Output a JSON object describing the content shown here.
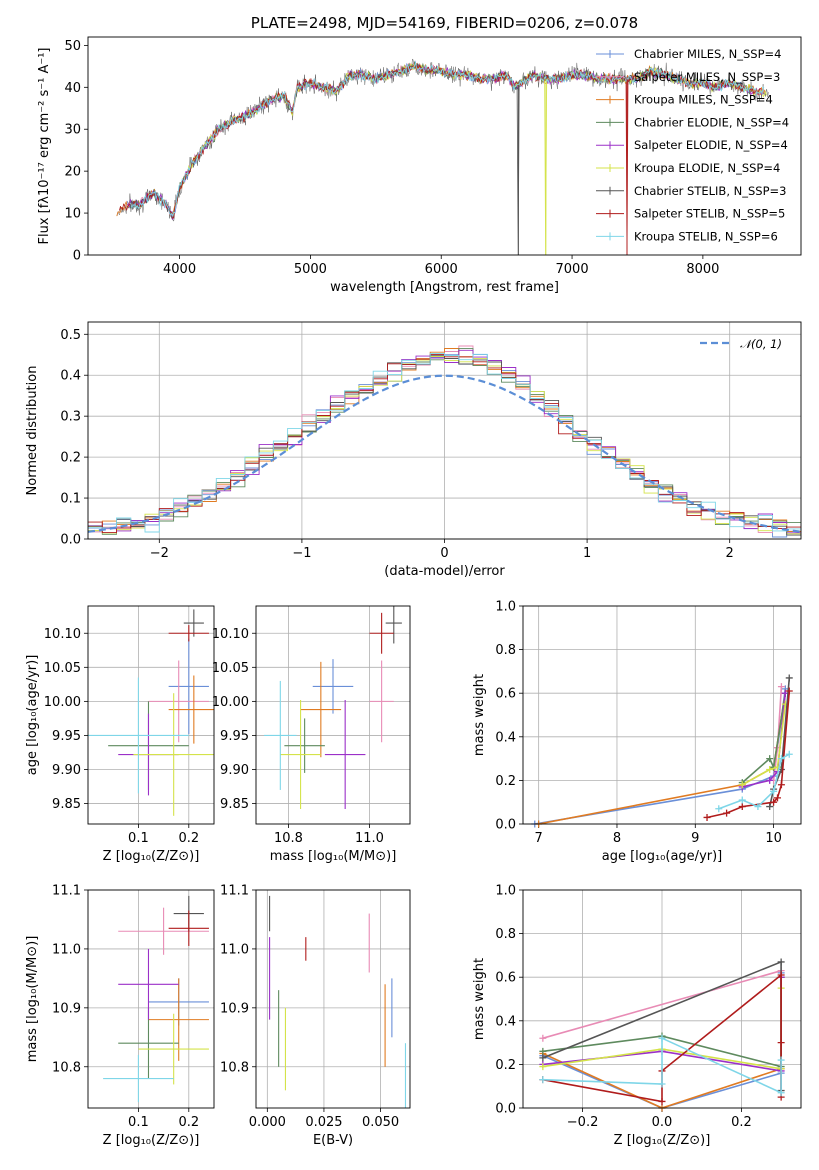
{
  "chart_data": [
    {
      "id": "spectrum",
      "type": "line",
      "title": "PLATE=2498, MJD=54169, FIBERID=0206, z=0.078",
      "xlabel": "wavelength [Angstrom, rest frame]",
      "ylabel": "Flux [fλ10⁻¹⁷ erg cm⁻² s⁻¹ A⁻¹]",
      "xlim": [
        3300,
        8750
      ],
      "ylim": [
        0,
        52
      ],
      "xticks": [
        4000,
        5000,
        6000,
        7000,
        8000
      ],
      "yticks": [
        0,
        10,
        20,
        30,
        40,
        50
      ],
      "grid": false,
      "legend_position": "top-right",
      "legend": [
        {
          "label": "Chabrier MILES, N_SSP=4",
          "color": "#6a8fd8"
        },
        {
          "label": "Salpeter MILES, N_SSP=3",
          "color": "#e88bb5"
        },
        {
          "label": "Kroupa MILES, N_SSP=4",
          "color": "#e07b22"
        },
        {
          "label": "Chabrier ELODIE, N_SSP=4",
          "color": "#5e8a5e"
        },
        {
          "label": "Salpeter ELODIE, N_SSP=4",
          "color": "#9b30c8"
        },
        {
          "label": "Kroupa ELODIE, N_SSP=4",
          "color": "#d4e34a"
        },
        {
          "label": "Chabrier STELIB, N_SSP=3",
          "color": "#555555"
        },
        {
          "label": "Salpeter STELIB, N_SSP=5",
          "color": "#b01c1c"
        },
        {
          "label": "Kroupa STELIB, N_SSP=6",
          "color": "#7fd6e8"
        }
      ],
      "spectrum_anchor_points": {
        "x": [
          3520,
          3600,
          3700,
          3800,
          3900,
          3950,
          4000,
          4100,
          4200,
          4300,
          4400,
          4500,
          4600,
          4700,
          4800,
          4860,
          4900,
          5000,
          5100,
          5200,
          5300,
          5400,
          5500,
          5600,
          5700,
          5800,
          5900,
          6000,
          6100,
          6200,
          6300,
          6400,
          6500,
          6563,
          6700,
          6800,
          6900,
          7000,
          7100,
          7200,
          7300,
          7400,
          7500,
          7600,
          7700,
          7800,
          7900,
          8000,
          8100,
          8200,
          8300,
          8400,
          8500
        ],
        "y": [
          10,
          12,
          12,
          15,
          12,
          9,
          16,
          22,
          26,
          30,
          32,
          33,
          35,
          37,
          38,
          34,
          40,
          41,
          40,
          39,
          43,
          43,
          42,
          43,
          44,
          45,
          44,
          44,
          43,
          43,
          42,
          42,
          43,
          40,
          43,
          42,
          42,
          43,
          43,
          42,
          42,
          42,
          42,
          44,
          43,
          42,
          41,
          41,
          40,
          41,
          40,
          39,
          39
        ]
      },
      "spectrum_dips": [
        {
          "series": "Chabrier STELIB, N_SSP=3",
          "x": 6590,
          "y": 0
        },
        {
          "series": "Kroupa ELODIE, N_SSP=4",
          "x": 6800,
          "y": 0
        },
        {
          "series": "Salpeter STELIB, N_SSP=5",
          "x": 7420,
          "y": 0
        }
      ]
    },
    {
      "id": "residual-hist",
      "type": "line",
      "xlabel": "(data-model)/error",
      "ylabel": "Normed distribution",
      "xlim": [
        -2.5,
        2.5
      ],
      "ylim": [
        0,
        0.53
      ],
      "xticks": [
        -2,
        -1,
        0,
        1,
        2
      ],
      "yticks": [
        0.0,
        0.1,
        0.2,
        0.3,
        0.4,
        0.5
      ],
      "grid": true,
      "legend_position": "top-right",
      "legend_label": "𝒩(0, 1)",
      "gaussian_color": "#5b8ed6",
      "bin_width": 0.1,
      "reference_profile": {
        "x": [
          -2.5,
          -2.3,
          -2.1,
          -1.9,
          -1.7,
          -1.5,
          -1.3,
          -1.1,
          -0.9,
          -0.7,
          -0.5,
          -0.3,
          -0.1,
          0.1,
          0.3,
          0.5,
          0.7,
          0.9,
          1.1,
          1.3,
          1.5,
          1.7,
          1.9,
          2.1,
          2.3,
          2.5
        ],
        "y": [
          0.02,
          0.03,
          0.04,
          0.07,
          0.1,
          0.14,
          0.19,
          0.24,
          0.29,
          0.34,
          0.38,
          0.42,
          0.44,
          0.45,
          0.43,
          0.39,
          0.33,
          0.27,
          0.22,
          0.17,
          0.12,
          0.09,
          0.06,
          0.04,
          0.03,
          0.02
        ]
      }
    },
    {
      "id": "age-vs-Z",
      "type": "scatter",
      "xlabel": "Z [log₁₀(Z/Z⊙)]",
      "ylabel": "age  [log₁₀(age/yr)]",
      "xlim": [
        0.0,
        0.25
      ],
      "ylim": [
        9.82,
        10.14
      ],
      "xticks": [
        0.1,
        0.2
      ],
      "yticks": [
        9.85,
        9.9,
        9.95,
        10.0,
        10.05,
        10.1
      ],
      "grid": true,
      "points": [
        {
          "series": "Chabrier MILES",
          "x": 0.2,
          "y": 10.022,
          "xerr": 0.04,
          "yerr": 0.07,
          "color": "#6a8fd8"
        },
        {
          "series": "Salpeter MILES",
          "x": 0.18,
          "y": 10.0,
          "xerr": 0.06,
          "yerr": 0.06,
          "color": "#e88bb5"
        },
        {
          "series": "Kroupa MILES",
          "x": 0.21,
          "y": 9.988,
          "xerr": 0.05,
          "yerr": 0.05,
          "color": "#e07b22"
        },
        {
          "series": "Chabrier ELODIE",
          "x": 0.12,
          "y": 9.935,
          "xerr": 0.08,
          "yerr": 0.065,
          "color": "#5e8a5e"
        },
        {
          "series": "Salpeter ELODIE",
          "x": 0.12,
          "y": 9.922,
          "xerr": 0.06,
          "yerr": 0.06,
          "color": "#9b30c8"
        },
        {
          "series": "Kroupa ELODIE",
          "x": 0.17,
          "y": 9.922,
          "xerr": 0.08,
          "yerr": 0.09,
          "color": "#d4e34a"
        },
        {
          "series": "Chabrier STELIB",
          "x": 0.21,
          "y": 10.115,
          "xerr": 0.02,
          "yerr": 0.02,
          "color": "#555555"
        },
        {
          "series": "Salpeter STELIB",
          "x": 0.2,
          "y": 10.1,
          "xerr": 0.04,
          "yerr": 0.012,
          "color": "#b01c1c"
        },
        {
          "series": "Kroupa STELIB",
          "x": 0.1,
          "y": 9.95,
          "xerr": 0.1,
          "yerr": 0.085,
          "color": "#7fd6e8"
        }
      ]
    },
    {
      "id": "age-vs-mass",
      "type": "scatter",
      "xlabel": "mass [log₁₀(M/M⊙)]",
      "ylabel": "",
      "xlim": [
        10.72,
        11.1
      ],
      "ylim": [
        9.82,
        10.14
      ],
      "xticks": [
        10.8,
        11.0
      ],
      "yticks": [
        9.85,
        9.9,
        9.95,
        10.0,
        10.05,
        10.1
      ],
      "grid": true,
      "points": [
        {
          "series": "Chabrier MILES",
          "x": 10.91,
          "y": 10.022,
          "xerr": 0.05,
          "yerr": 0.04,
          "color": "#6a8fd8"
        },
        {
          "series": "Salpeter MILES",
          "x": 11.03,
          "y": 10.0,
          "xerr": 0.03,
          "yerr": 0.06,
          "color": "#e88bb5"
        },
        {
          "series": "Kroupa MILES",
          "x": 10.88,
          "y": 9.988,
          "xerr": 0.05,
          "yerr": 0.07,
          "color": "#e07b22"
        },
        {
          "series": "Chabrier ELODIE",
          "x": 10.84,
          "y": 9.935,
          "xerr": 0.05,
          "yerr": 0.04,
          "color": "#5e8a5e"
        },
        {
          "series": "Salpeter ELODIE",
          "x": 10.94,
          "y": 9.922,
          "xerr": 0.05,
          "yerr": 0.08,
          "color": "#9b30c8"
        },
        {
          "series": "Kroupa ELODIE",
          "x": 10.83,
          "y": 9.922,
          "xerr": 0.05,
          "yerr": 0.08,
          "color": "#d4e34a"
        },
        {
          "series": "Chabrier STELIB",
          "x": 11.06,
          "y": 10.115,
          "xerr": 0.02,
          "yerr": 0.03,
          "color": "#555555"
        },
        {
          "series": "Salpeter STELIB",
          "x": 11.03,
          "y": 10.1,
          "xerr": 0.03,
          "yerr": 0.03,
          "color": "#b01c1c"
        },
        {
          "series": "Kroupa STELIB",
          "x": 10.78,
          "y": 9.95,
          "xerr": 0.04,
          "yerr": 0.08,
          "color": "#7fd6e8"
        }
      ]
    },
    {
      "id": "mass-weight-vs-age",
      "type": "line",
      "xlabel": "age  [log₁₀(age/yr)]",
      "ylabel": "mass weight",
      "xlim": [
        6.8,
        10.35
      ],
      "ylim": [
        0.0,
        1.0
      ],
      "xticks": [
        7,
        8,
        9,
        10
      ],
      "yticks": [
        0.0,
        0.2,
        0.4,
        0.6,
        0.8,
        1.0
      ],
      "grid": true,
      "series": [
        {
          "name": "Chabrier MILES",
          "color": "#6a8fd8",
          "x": [
            6.95,
            9.6,
            10.0,
            10.15
          ],
          "y": [
            0.0,
            0.16,
            0.22,
            0.62
          ]
        },
        {
          "name": "Salpeter MILES",
          "color": "#e88bb5",
          "x": [
            10.0,
            10.05,
            10.1
          ],
          "y": [
            0.2,
            0.35,
            0.63
          ]
        },
        {
          "name": "Kroupa MILES",
          "color": "#e07b22",
          "x": [
            7.0,
            9.6,
            10.0,
            10.15
          ],
          "y": [
            0.0,
            0.18,
            0.26,
            0.6
          ]
        },
        {
          "name": "Chabrier ELODIE",
          "color": "#5e8a5e",
          "x": [
            9.6,
            9.95,
            10.0,
            10.15
          ],
          "y": [
            0.19,
            0.3,
            0.26,
            0.6
          ]
        },
        {
          "name": "Salpeter ELODIE",
          "color": "#9b30c8",
          "x": [
            9.6,
            9.95,
            10.05,
            10.15
          ],
          "y": [
            0.17,
            0.2,
            0.24,
            0.6
          ]
        },
        {
          "name": "Kroupa ELODIE",
          "color": "#d4e34a",
          "x": [
            9.6,
            9.95,
            10.05,
            10.15
          ],
          "y": [
            0.18,
            0.25,
            0.26,
            0.55
          ]
        },
        {
          "name": "Chabrier STELIB",
          "color": "#555555",
          "x": [
            9.95,
            10.0,
            10.1,
            10.2
          ],
          "y": [
            0.08,
            0.16,
            0.25,
            0.67
          ]
        },
        {
          "name": "Salpeter STELIB",
          "color": "#b01c1c",
          "x": [
            9.15,
            9.4,
            9.6,
            10.0,
            10.05,
            10.1,
            10.2
          ],
          "y": [
            0.03,
            0.05,
            0.08,
            0.1,
            0.12,
            0.18,
            0.61
          ]
        },
        {
          "name": "Kroupa STELIB",
          "color": "#7fd6e8",
          "x": [
            9.3,
            9.6,
            9.8,
            10.0,
            10.1,
            10.2
          ],
          "y": [
            0.07,
            0.11,
            0.08,
            0.15,
            0.3,
            0.32
          ]
        }
      ]
    },
    {
      "id": "mass-vs-Z",
      "type": "scatter",
      "xlabel": "Z [log₁₀(Z/Z⊙)]",
      "ylabel": "mass [log₁₀(M/M⊙)]",
      "xlim": [
        0.0,
        0.25
      ],
      "ylim": [
        10.73,
        11.1
      ],
      "xticks": [
        0.1,
        0.2
      ],
      "yticks": [
        10.8,
        10.9,
        11.0,
        11.1
      ],
      "grid": true,
      "points": [
        {
          "series": "Chabrier MILES",
          "x": 0.18,
          "y": 10.91,
          "xerr": 0.06,
          "yerr": 0.04,
          "color": "#6a8fd8"
        },
        {
          "series": "Salpeter MILES",
          "x": 0.15,
          "y": 11.03,
          "xerr": 0.09,
          "yerr": 0.04,
          "color": "#e88bb5"
        },
        {
          "series": "Kroupa MILES",
          "x": 0.18,
          "y": 10.88,
          "xerr": 0.06,
          "yerr": 0.07,
          "color": "#e07b22"
        },
        {
          "series": "Chabrier ELODIE",
          "x": 0.12,
          "y": 10.84,
          "xerr": 0.06,
          "yerr": 0.06,
          "color": "#5e8a5e"
        },
        {
          "series": "Salpeter ELODIE",
          "x": 0.12,
          "y": 10.94,
          "xerr": 0.06,
          "yerr": 0.06,
          "color": "#9b30c8"
        },
        {
          "series": "Kroupa ELODIE",
          "x": 0.17,
          "y": 10.83,
          "xerr": 0.07,
          "yerr": 0.06,
          "color": "#d4e34a"
        },
        {
          "series": "Chabrier STELIB",
          "x": 0.2,
          "y": 11.06,
          "xerr": 0.03,
          "yerr": 0.03,
          "color": "#555555"
        },
        {
          "series": "Salpeter STELIB",
          "x": 0.2,
          "y": 11.035,
          "xerr": 0.04,
          "yerr": 0.03,
          "color": "#b01c1c"
        },
        {
          "series": "Kroupa STELIB",
          "x": 0.1,
          "y": 10.78,
          "xerr": 0.07,
          "yerr": 0.04,
          "color": "#7fd6e8"
        }
      ]
    },
    {
      "id": "mass-vs-EBV",
      "type": "scatter",
      "xlabel": "E(B-V)",
      "ylabel": "",
      "xlim": [
        -0.005,
        0.063
      ],
      "ylim": [
        10.73,
        11.1
      ],
      "xticks": [
        0.0,
        0.025,
        0.05
      ],
      "xtick_labels": [
        "0.000",
        "0.025",
        "0.050"
      ],
      "yticks": [
        10.8,
        10.9,
        11.0,
        11.1
      ],
      "grid": true,
      "points": [
        {
          "series": "Chabrier MILES",
          "x": 0.055,
          "y": 10.9,
          "xerr": 0.0,
          "yerr": 0.05,
          "color": "#6a8fd8"
        },
        {
          "series": "Salpeter MILES",
          "x": 0.045,
          "y": 11.01,
          "xerr": 0.0,
          "yerr": 0.05,
          "color": "#e88bb5"
        },
        {
          "series": "Kroupa MILES",
          "x": 0.052,
          "y": 10.87,
          "xerr": 0.0,
          "yerr": 0.07,
          "color": "#e07b22"
        },
        {
          "series": "Chabrier ELODIE",
          "x": 0.005,
          "y": 10.865,
          "xerr": 0.0,
          "yerr": 0.065,
          "color": "#5e8a5e"
        },
        {
          "series": "Salpeter ELODIE",
          "x": 0.001,
          "y": 10.95,
          "xerr": 0.0,
          "yerr": 0.07,
          "color": "#9b30c8"
        },
        {
          "series": "Kroupa ELODIE",
          "x": 0.008,
          "y": 10.83,
          "xerr": 0.0,
          "yerr": 0.07,
          "color": "#d4e34a"
        },
        {
          "series": "Chabrier STELIB",
          "x": 0.001,
          "y": 11.06,
          "xerr": 0.0,
          "yerr": 0.03,
          "color": "#555555"
        },
        {
          "series": "Salpeter STELIB",
          "x": 0.017,
          "y": 11.0,
          "xerr": 0.0,
          "yerr": 0.02,
          "color": "#b01c1c"
        },
        {
          "series": "Kroupa STELIB",
          "x": 0.061,
          "y": 10.78,
          "xerr": 0.0,
          "yerr": 0.06,
          "color": "#7fd6e8"
        }
      ]
    },
    {
      "id": "mass-weight-vs-Z",
      "type": "line",
      "xlabel": "Z [log₁₀(Z/Z⊙)]",
      "ylabel": "mass weight",
      "xlim": [
        -0.35,
        0.35
      ],
      "ylim": [
        0.0,
        1.0
      ],
      "xticks": [
        -0.2,
        0.0,
        0.2
      ],
      "xtick_labels": [
        "−0.2",
        "0.0",
        "0.2"
      ],
      "yticks": [
        0.0,
        0.2,
        0.4,
        0.6,
        0.8,
        1.0
      ],
      "grid": true,
      "series": [
        {
          "name": "Chabrier MILES",
          "color": "#6a8fd8",
          "x": [
            -0.3,
            0.0,
            0.3,
            0.3
          ],
          "y": [
            0.24,
            0.0,
            0.16,
            0.62
          ]
        },
        {
          "name": "Salpeter MILES",
          "color": "#e88bb5",
          "x": [
            -0.3,
            0.3
          ],
          "y": [
            0.32,
            0.63
          ]
        },
        {
          "name": "Kroupa MILES",
          "color": "#e07b22",
          "x": [
            -0.3,
            0.0,
            0.3,
            0.3
          ],
          "y": [
            0.25,
            0.0,
            0.18,
            0.6
          ]
        },
        {
          "name": "Chabrier ELODIE",
          "color": "#5e8a5e",
          "x": [
            -0.3,
            0.0,
            0.3,
            0.3
          ],
          "y": [
            0.26,
            0.33,
            0.19,
            0.6
          ]
        },
        {
          "name": "Salpeter ELODIE",
          "color": "#9b30c8",
          "x": [
            -0.3,
            0.0,
            0.3,
            0.3
          ],
          "y": [
            0.2,
            0.26,
            0.17,
            0.6
          ]
        },
        {
          "name": "Kroupa ELODIE",
          "color": "#d4e34a",
          "x": [
            -0.3,
            0.0,
            0.3,
            0.3
          ],
          "y": [
            0.19,
            0.27,
            0.18,
            0.55
          ]
        },
        {
          "name": "Chabrier STELIB",
          "color": "#555555",
          "x": [
            -0.3,
            0.3,
            0.3
          ],
          "y": [
            0.23,
            0.67,
            0.08
          ]
        },
        {
          "name": "Salpeter STELIB",
          "color": "#b01c1c",
          "x": [
            -0.3,
            0.0,
            0.0,
            0.3,
            0.3,
            0.3
          ],
          "y": [
            0.13,
            0.03,
            0.17,
            0.61,
            0.3,
            0.05
          ]
        },
        {
          "name": "Kroupa STELIB",
          "color": "#7fd6e8",
          "x": [
            -0.3,
            0.0,
            0.0,
            0.3,
            0.3
          ],
          "y": [
            0.13,
            0.11,
            0.32,
            0.07,
            0.22
          ]
        }
      ]
    }
  ]
}
